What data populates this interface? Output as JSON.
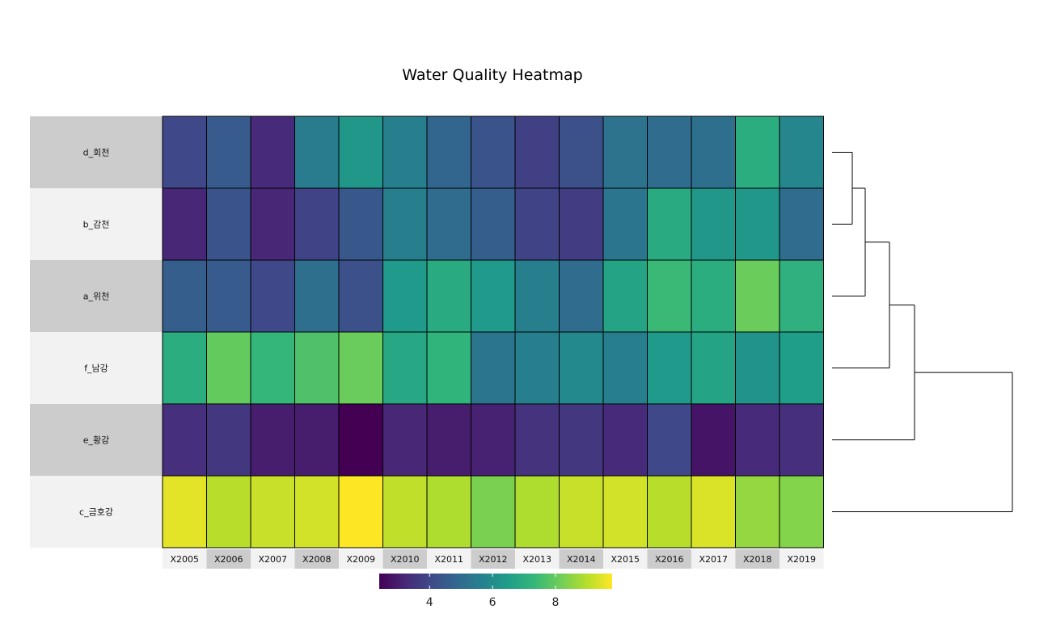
{
  "chart_data": {
    "type": "heatmap",
    "title": "Water Quality Heatmap",
    "rows": [
      "d_회천",
      "b_감천",
      "a_위천",
      "f_남강",
      "e_황강",
      "c_금호강"
    ],
    "columns": [
      "X2005",
      "X2006",
      "X2007",
      "X2008",
      "X2009",
      "X2010",
      "X2011",
      "X2012",
      "X2013",
      "X2014",
      "X2015",
      "X2016",
      "X2017",
      "X2018",
      "X2019"
    ],
    "values": [
      [
        4.0,
        4.5,
        3.3,
        5.5,
        6.3,
        5.6,
        4.8,
        4.3,
        3.8,
        4.2,
        5.2,
        5.0,
        5.1,
        7.0,
        5.8
      ],
      [
        3.2,
        4.3,
        3.2,
        3.9,
        4.4,
        5.6,
        5.0,
        4.6,
        3.9,
        3.7,
        5.3,
        6.9,
        6.3,
        6.3,
        5.0
      ],
      [
        4.6,
        4.5,
        4.0,
        5.1,
        4.2,
        6.4,
        6.9,
        6.4,
        5.6,
        5.0,
        6.7,
        7.4,
        7.0,
        8.1,
        7.1
      ],
      [
        7.0,
        8.0,
        7.3,
        7.7,
        8.1,
        6.8,
        7.2,
        5.3,
        5.6,
        5.9,
        5.6,
        6.4,
        6.7,
        6.2,
        6.5
      ],
      [
        3.4,
        3.6,
        3.0,
        3.0,
        2.4,
        3.2,
        3.0,
        3.1,
        3.5,
        3.6,
        3.3,
        4.0,
        2.8,
        3.3,
        3.4
      ],
      [
        9.5,
        9.0,
        9.2,
        9.3,
        9.8,
        9.1,
        8.9,
        8.3,
        8.9,
        9.2,
        9.3,
        9.0,
        9.4,
        8.6,
        8.4
      ]
    ],
    "colorbar": {
      "ticks": [
        4,
        6,
        8
      ],
      "range": [
        2.4,
        9.8
      ],
      "palette": "viridis"
    },
    "dendrogram": "row",
    "legend_position": "bottom"
  }
}
